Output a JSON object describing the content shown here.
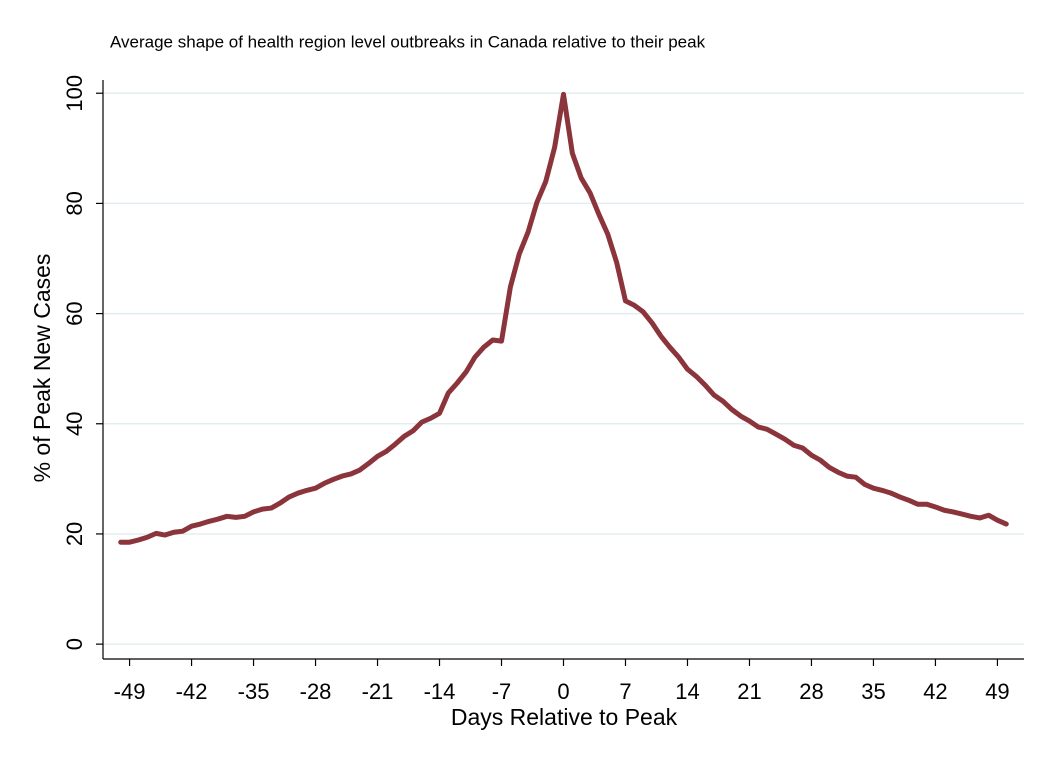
{
  "chart_data": {
    "type": "line",
    "title": "Average shape of health region level outbreaks in Canada relative to their peak",
    "x_label": "Days Relative to Peak",
    "y_label": "% of Peak New Cases",
    "x": [
      -50,
      -49,
      -48,
      -47,
      -46,
      -45,
      -44,
      -43,
      -42,
      -41,
      -40,
      -39,
      -38,
      -37,
      -36,
      -35,
      -34,
      -33,
      -32,
      -31,
      -30,
      -29,
      -28,
      -27,
      -26,
      -25,
      -24,
      -23,
      -22,
      -21,
      -20,
      -19,
      -18,
      -17,
      -16,
      -15,
      -14,
      -13,
      -12,
      -11,
      -10,
      -9,
      -8,
      -7,
      -6,
      -5,
      -4,
      -3,
      -2,
      -1,
      0,
      1,
      2,
      3,
      4,
      5,
      6,
      7,
      8,
      9,
      10,
      11,
      12,
      13,
      14,
      15,
      16,
      17,
      18,
      19,
      20,
      21,
      22,
      23,
      24,
      25,
      26,
      27,
      28,
      29,
      30,
      31,
      32,
      33,
      34,
      35,
      36,
      37,
      38,
      39,
      40,
      41,
      42,
      43,
      44,
      45,
      46,
      47,
      48,
      49,
      50
    ],
    "series": [
      {
        "name": "% of Peak New Cases",
        "color": "#8b343b",
        "values": [
          18.5,
          18.5,
          18.9,
          19.4,
          20.1,
          19.8,
          20.3,
          20.5,
          21.4,
          21.8,
          22.3,
          22.7,
          23.2,
          23.0,
          23.2,
          24.0,
          24.5,
          24.7,
          25.6,
          26.7,
          27.4,
          27.9,
          28.3,
          29.2,
          29.9,
          30.5,
          30.9,
          31.6,
          32.8,
          34.1,
          35.0,
          36.3,
          37.7,
          38.7,
          40.3,
          41.0,
          41.9,
          45.6,
          47.4,
          49.4,
          52.1,
          53.9,
          55.2,
          55.0,
          64.8,
          70.8,
          74.8,
          80.2,
          84.0,
          90.2,
          99.8,
          89.1,
          84.6,
          81.9,
          78.0,
          74.4,
          69.3,
          62.3,
          61.5,
          60.3,
          58.3,
          55.9,
          53.9,
          52.1,
          49.9,
          48.6,
          47.0,
          45.2,
          44.1,
          42.6,
          41.4,
          40.5,
          39.4,
          39.0,
          38.1,
          37.2,
          36.1,
          35.6,
          34.3,
          33.4,
          32.1,
          31.2,
          30.5,
          30.3,
          29.0,
          28.3,
          27.9,
          27.4,
          26.7,
          26.1,
          25.4,
          25.4,
          24.9,
          24.3,
          24.0,
          23.6,
          23.2,
          22.9,
          23.4,
          22.5,
          21.8
        ]
      }
    ],
    "xlim": [
      -52,
      52
    ],
    "xticks": [
      -49,
      -42,
      -35,
      -28,
      -21,
      -14,
      -7,
      0,
      7,
      14,
      21,
      28,
      35,
      42,
      49
    ],
    "ylim": [
      -2.7,
      102.4
    ],
    "yticks": [
      0,
      20,
      40,
      60,
      80,
      100
    ],
    "grid": true
  }
}
